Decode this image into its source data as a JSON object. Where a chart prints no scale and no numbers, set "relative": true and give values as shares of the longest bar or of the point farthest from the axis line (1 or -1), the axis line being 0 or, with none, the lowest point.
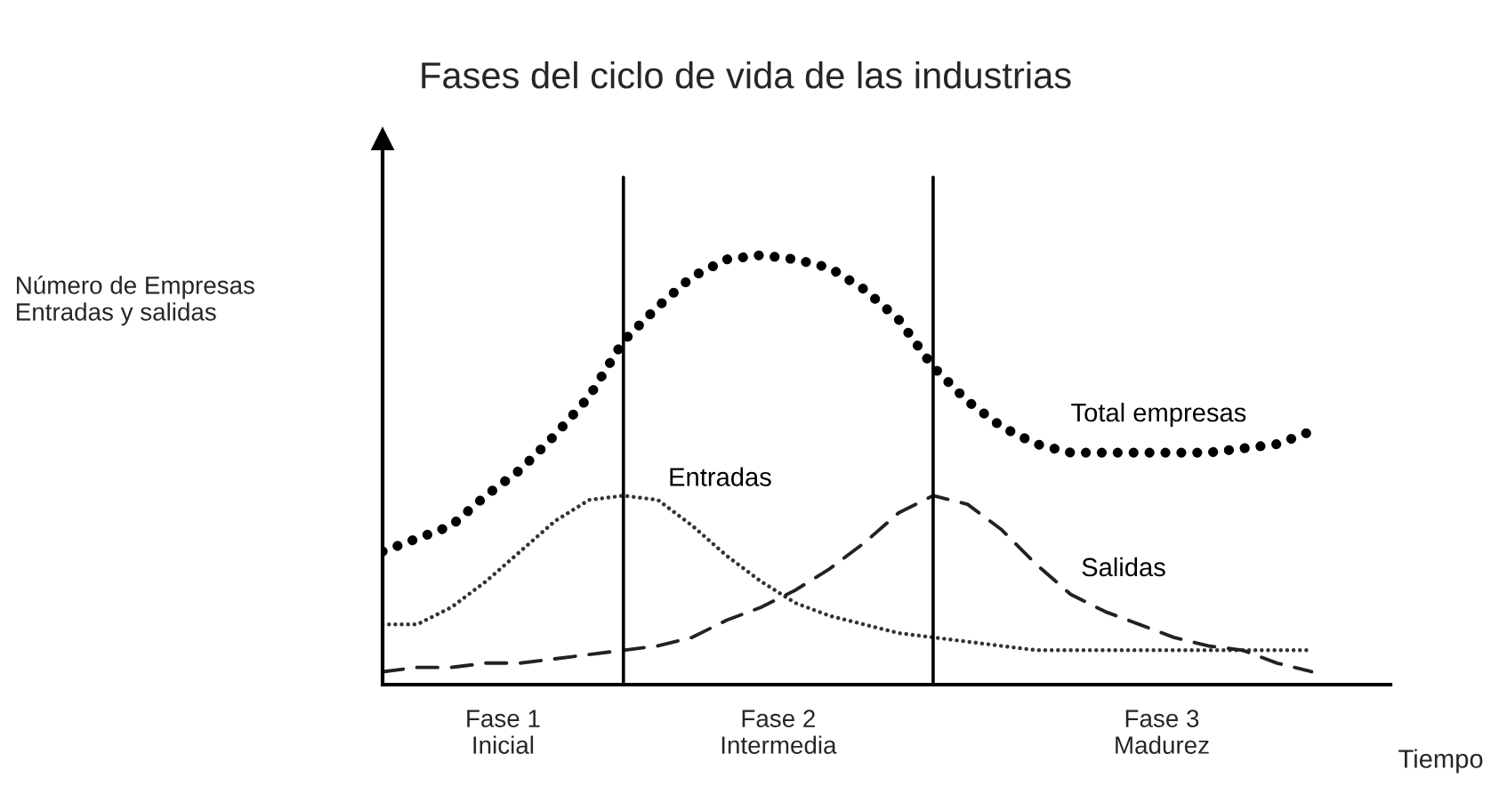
{
  "chart_data": {
    "type": "line",
    "title": "Fases del ciclo de vida de las industrias",
    "ylabel": "Número de Empresas\nEntradas y salidas",
    "xlabel": "Tiempo",
    "relative": true,
    "legend": false,
    "categories": [
      null,
      null,
      null,
      null,
      null,
      null,
      null,
      null,
      null,
      null,
      null,
      null,
      null,
      null,
      null,
      null,
      null,
      null,
      null,
      null,
      null,
      null,
      null,
      null,
      null,
      null,
      null,
      null
    ],
    "series": [
      {
        "name": "Total empresas",
        "color": "#000000",
        "line_style": "dotted",
        "values": [
          0.31,
          0.34,
          0.37,
          0.44,
          0.5,
          0.58,
          0.67,
          0.8,
          0.88,
          0.95,
          0.99,
          1.0,
          0.99,
          0.97,
          0.92,
          0.85,
          0.74,
          0.66,
          0.6,
          0.56,
          0.54,
          0.54,
          0.54,
          0.54,
          0.54,
          0.55,
          0.56,
          0.59
        ]
      },
      {
        "name": "Entradas",
        "color": "#333333",
        "line_style": "dotted",
        "values": [
          0.14,
          0.14,
          0.18,
          0.24,
          0.31,
          0.38,
          0.43,
          0.44,
          0.43,
          0.37,
          0.3,
          0.24,
          0.19,
          0.16,
          0.14,
          0.12,
          0.11,
          0.1,
          0.09,
          0.08,
          0.08,
          0.08,
          0.08,
          0.08,
          0.08,
          0.08,
          0.08,
          0.08
        ]
      },
      {
        "name": "Salidas",
        "color": "#222222",
        "line_style": "dashed",
        "values": [
          0.03,
          0.04,
          0.04,
          0.05,
          0.05,
          0.06,
          0.07,
          0.08,
          0.09,
          0.11,
          0.15,
          0.18,
          0.22,
          0.27,
          0.33,
          0.4,
          0.44,
          0.42,
          0.36,
          0.28,
          0.21,
          0.17,
          0.14,
          0.11,
          0.09,
          0.08,
          0.05,
          0.03
        ]
      }
    ],
    "annotations": [
      "Fase 1\nInicial",
      "Fase 2\nIntermedia",
      "Fase 3\nMadurez"
    ]
  }
}
